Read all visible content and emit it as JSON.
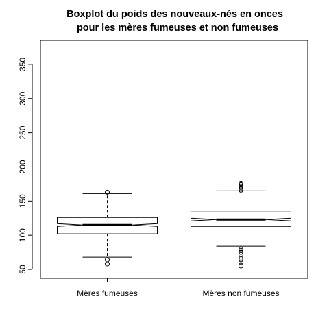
{
  "chart_data": {
    "type": "boxplot",
    "title_lines": [
      "Boxplot du poids des nouveaux-nés en onces",
      "pour les mères fumeuses et non fumeuses"
    ],
    "xlabel": "",
    "ylabel": "",
    "ylim": [
      37,
      385
    ],
    "yticks": [
      50,
      100,
      150,
      200,
      250,
      300,
      350
    ],
    "grid": false,
    "notched": true,
    "categories": [
      "Mères fumeuses",
      "Mères non fumeuses"
    ],
    "boxes": [
      {
        "category": "Mères fumeuses",
        "min": 68,
        "q1": 102,
        "median": 115,
        "q3": 126,
        "max": 161,
        "notch_low": 113,
        "notch_high": 117,
        "outliers": [
          58,
          64,
          163
        ]
      },
      {
        "category": "Mères non fumeuses",
        "min": 84,
        "q1": 113,
        "median": 123,
        "q3": 134,
        "max": 165,
        "notch_low": 121,
        "notch_high": 125,
        "outliers": [
          55,
          61,
          64,
          66,
          72,
          75,
          78,
          80,
          166,
          168,
          170,
          172,
          174,
          176
        ]
      }
    ]
  }
}
